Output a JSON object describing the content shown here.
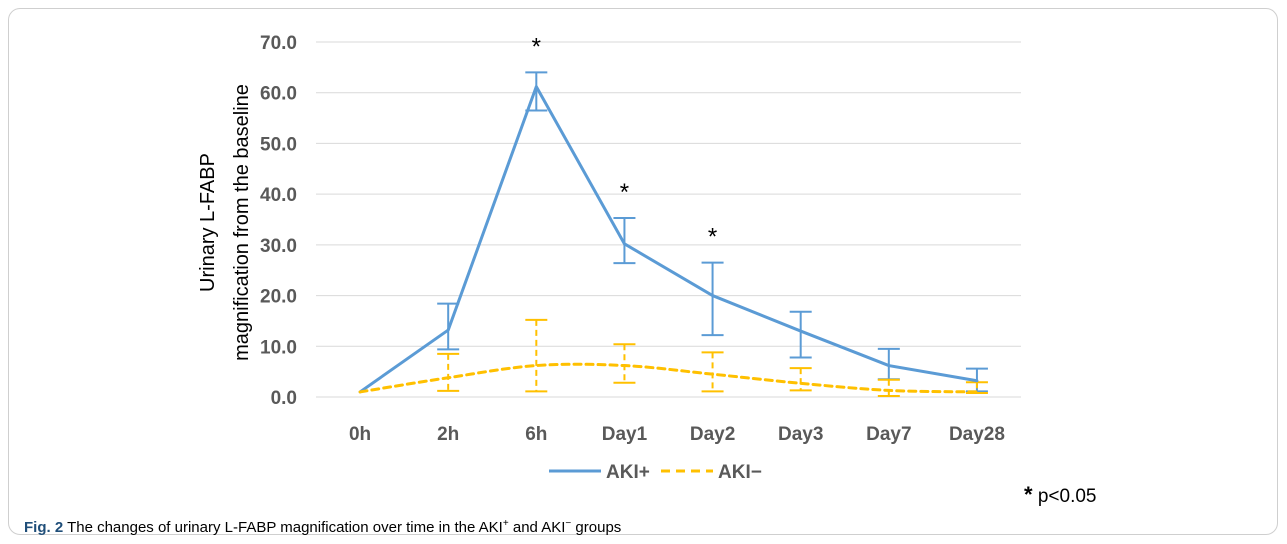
{
  "chart_data": {
    "type": "line",
    "ylabel_lines": [
      "Urinary L-FABP",
      "magnification from the baseline"
    ],
    "categories": [
      "0h",
      "2h",
      "6h",
      "Day1",
      "Day2",
      "Day3",
      "Day7",
      "Day28"
    ],
    "ylim": [
      0,
      70
    ],
    "yticks": [
      "0.0",
      "10.0",
      "20.0",
      "30.0",
      "40.0",
      "50.0",
      "60.0",
      "70.0"
    ],
    "grid": true,
    "legend_position": "bottom",
    "series": [
      {
        "name": "AKI+",
        "color": "#5b9bd5",
        "dash": "solid",
        "values": [
          1.0,
          13.2,
          61.2,
          30.2,
          20.0,
          13.0,
          6.2,
          3.2
        ],
        "err_low": [
          1.0,
          9.4,
          56.5,
          26.4,
          12.2,
          7.8,
          3.5,
          1.1
        ],
        "err_high": [
          1.0,
          18.4,
          64.0,
          35.3,
          26.5,
          16.8,
          9.5,
          5.6
        ]
      },
      {
        "name": "AKI−",
        "color": "#ffc000",
        "dash": "dashed",
        "values": [
          1.0,
          3.8,
          6.2,
          6.2,
          4.5,
          2.7,
          1.3,
          1.0
        ],
        "err_low": [
          1.0,
          1.2,
          1.1,
          2.8,
          1.1,
          1.3,
          0.2,
          0.8
        ],
        "err_high": [
          1.0,
          8.5,
          15.2,
          10.4,
          8.8,
          5.7,
          3.4,
          2.9
        ]
      }
    ],
    "significance_markers": [
      {
        "category": "6h",
        "symbol": "*"
      },
      {
        "category": "Day1",
        "symbol": "*"
      },
      {
        "category": "Day2",
        "symbol": "*"
      }
    ]
  },
  "note": {
    "symbol": "*",
    "text": " p<0.05"
  },
  "caption": {
    "label": "Fig. 2",
    "text_before": "  The changes of urinary L-FABP magnification over time in the AKI",
    "sup1": "+",
    "text_mid": " and AKI",
    "sup2": "−",
    "text_after": " groups"
  }
}
